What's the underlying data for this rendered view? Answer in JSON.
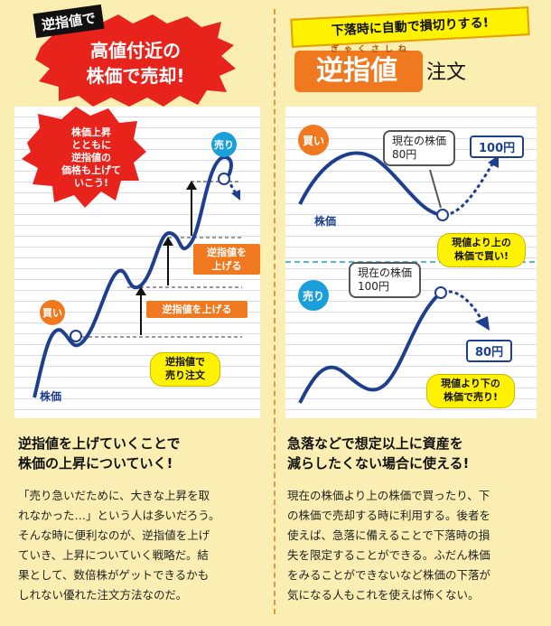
{
  "left": {
    "badge": "逆指値で",
    "headline_line1": "高値付近の",
    "headline_line2": "株価で売却!",
    "chart": {
      "bubble_line1": "株価上昇",
      "bubble_line2": "とともに",
      "bubble_line3": "逆指値の",
      "bubble_line4": "価格も上げて",
      "bubble_line5": "いこう!",
      "sell_label": "売り",
      "buy_label": "買い",
      "raise_label_1_line1": "逆指値を",
      "raise_label_1_line2": "上げる",
      "raise_label_2": "逆指値を上げる",
      "order_bubble_line1": "逆指値で",
      "order_bubble_line2": "売り注文",
      "stock_label": "株価"
    },
    "heading_line1": "逆指値を上げていくことで",
    "heading_line2": "株価の上昇についていく!",
    "body_lines": [
      "「売り急いだために、大きな上昇を取",
      "れなかった…」という人は多いだろう。",
      "そんな時に便利なのが、逆指値を上げ",
      "ていき、上昇についていく戦略だ。結",
      "果として、数倍株がゲットできるかも",
      "しれない優れた注文方法なのだ。"
    ]
  },
  "right": {
    "subtitle": "下落時に自動で損切りする!",
    "ruby": "ぎゃくさしね",
    "title_main": "逆指値",
    "title_suffix": "注文",
    "top_chart": {
      "buy_label": "買い",
      "box_line1": "現在の株価",
      "box_line2": "80円",
      "price": "100円",
      "bubble_line1": "現値より上の",
      "bubble_line2": "株価で買い!",
      "stock_label": "株価"
    },
    "bottom_chart": {
      "sell_label": "売り",
      "box_line1": "現在の株価",
      "box_line2": "100円",
      "price": "80円",
      "bubble_line1": "現値より下の",
      "bubble_line2": "株価で売り!"
    },
    "heading_line1": "急落などで想定以上に資産を",
    "heading_line2": "減らしたくない場合に使える!",
    "body_lines": [
      "現在の株価より上の株価で買ったり、下",
      "の株価で売却する時に利用する。後者を",
      "使えば、急落に備えることで下落時の損",
      "失を限定することができる。ふだん株価",
      "をみることができないなど株価の下落が",
      "気になる人もこれを使えば怖くない。"
    ]
  },
  "colors": {
    "background": "#fbeeb2",
    "accent_orange": "#f0781e",
    "red_burst": "#e8231b",
    "navy_curve": "#1d3f8e",
    "yellow_bubble": "#fff200"
  }
}
